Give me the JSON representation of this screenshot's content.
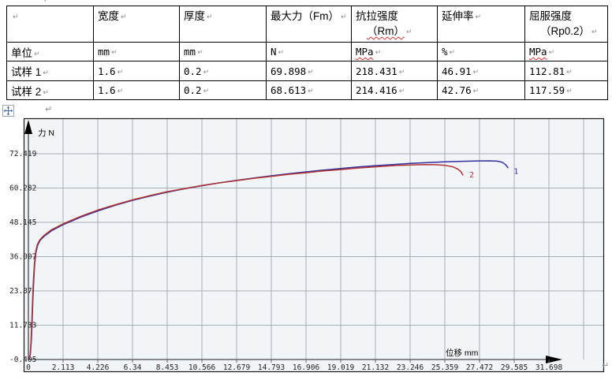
{
  "formatting_marks": {
    "pilcrow": "↵"
  },
  "table": {
    "header": {
      "cells": [
        {
          "text": ""
        },
        {
          "text": "宽度"
        },
        {
          "text": "厚度"
        },
        {
          "text": "最大力（Fm）"
        },
        {
          "text": "抗拉强度",
          "text2": "（Rm）",
          "wavy2": true
        },
        {
          "text": "延伸率"
        },
        {
          "text": "屈服强度",
          "text2": "（Rp0.2）",
          "wavy2": false
        }
      ]
    },
    "rows": [
      {
        "label": "单位",
        "values": [
          "mm",
          "mm",
          "N",
          "MPa",
          "%",
          "MPa"
        ],
        "wavy": [
          false,
          false,
          false,
          true,
          false,
          true
        ]
      },
      {
        "label": "试样 1",
        "values": [
          "1.6",
          "0.2",
          "69.898",
          "218.431",
          "46.91",
          "112.81"
        ],
        "wavy": [
          false,
          false,
          false,
          false,
          false,
          false
        ]
      },
      {
        "label": "试样 2",
        "values": [
          "1.6",
          "0.2",
          "68.613",
          "214.416",
          "42.76",
          "117.59"
        ],
        "wavy": [
          false,
          false,
          false,
          false,
          false,
          false
        ]
      }
    ]
  },
  "chart_data": {
    "type": "line",
    "title": "",
    "xlabel": "位移 mm",
    "ylabel": "力 N",
    "xlim": [
      0,
      33.811
    ],
    "ylim": [
      -0.405,
      72.419
    ],
    "grid": true,
    "x_tick_labels": [
      "0",
      "2.113",
      "4.226",
      "6.34",
      "8.453",
      "10.566",
      "12.679",
      "14.793",
      "16.906",
      "19.019",
      "21.132",
      "23.246",
      "25.359",
      "27.472",
      "29.585",
      "31.698"
    ],
    "y_tick_labels": [
      "72.419",
      "60.282",
      "48.145",
      "36.007",
      "23.87",
      "11.733",
      "-0.405"
    ],
    "colors": {
      "bg": "#f2f5f8",
      "grid": "#a8adb5",
      "axis": "#60666d",
      "frame": "#1a1a1a",
      "tick_text": "#1f1f1f"
    },
    "series": [
      {
        "name": "1",
        "color": "#2f2f9e",
        "end_label": "1",
        "end_label_at": [
          29.55,
          65.3
        ],
        "points": [
          [
            0.05,
            0
          ],
          [
            0.12,
            1.5
          ],
          [
            0.18,
            6
          ],
          [
            0.22,
            12
          ],
          [
            0.27,
            20
          ],
          [
            0.32,
            27
          ],
          [
            0.38,
            33
          ],
          [
            0.46,
            37.5
          ],
          [
            0.56,
            40
          ],
          [
            0.72,
            41.8
          ],
          [
            1.0,
            43.4
          ],
          [
            1.45,
            45.3
          ],
          [
            2.11,
            47.3
          ],
          [
            3.2,
            50.0
          ],
          [
            4.23,
            52.2
          ],
          [
            5.3,
            54.2
          ],
          [
            6.34,
            55.9
          ],
          [
            7.4,
            57.4
          ],
          [
            8.45,
            58.8
          ],
          [
            9.5,
            60.0
          ],
          [
            10.57,
            61.1
          ],
          [
            11.6,
            62.1
          ],
          [
            12.68,
            63.0
          ],
          [
            13.7,
            63.8
          ],
          [
            14.79,
            64.6
          ],
          [
            15.8,
            65.3
          ],
          [
            16.91,
            66.0
          ],
          [
            17.9,
            66.6
          ],
          [
            19.02,
            67.2
          ],
          [
            20.0,
            67.7
          ],
          [
            21.13,
            68.2
          ],
          [
            22.2,
            68.6
          ],
          [
            23.25,
            69.0
          ],
          [
            24.3,
            69.3
          ],
          [
            25.36,
            69.55
          ],
          [
            26.4,
            69.75
          ],
          [
            27.4,
            69.87
          ],
          [
            28.1,
            69.9
          ],
          [
            28.55,
            69.8
          ],
          [
            28.85,
            69.4
          ],
          [
            29.05,
            68.6
          ],
          [
            29.2,
            67.5
          ]
        ]
      },
      {
        "name": "2",
        "color": "#b23333",
        "end_label": "2",
        "end_label_at": [
          26.85,
          64.0
        ],
        "points": [
          [
            0.05,
            0
          ],
          [
            0.11,
            1.5
          ],
          [
            0.16,
            6
          ],
          [
            0.2,
            12
          ],
          [
            0.25,
            20
          ],
          [
            0.3,
            27
          ],
          [
            0.36,
            33
          ],
          [
            0.44,
            37.7
          ],
          [
            0.54,
            40.2
          ],
          [
            0.7,
            42.0
          ],
          [
            0.97,
            43.6
          ],
          [
            1.4,
            45.5
          ],
          [
            2.11,
            47.6
          ],
          [
            3.2,
            50.3
          ],
          [
            4.23,
            52.5
          ],
          [
            5.3,
            54.4
          ],
          [
            6.34,
            56.1
          ],
          [
            7.4,
            57.6
          ],
          [
            8.45,
            59.0
          ],
          [
            9.5,
            60.1
          ],
          [
            10.57,
            61.2
          ],
          [
            11.6,
            62.1
          ],
          [
            12.68,
            62.9
          ],
          [
            13.7,
            63.7
          ],
          [
            14.79,
            64.4
          ],
          [
            15.8,
            65.1
          ],
          [
            16.91,
            65.7
          ],
          [
            17.9,
            66.3
          ],
          [
            19.02,
            66.8
          ],
          [
            20.0,
            67.3
          ],
          [
            21.13,
            67.8
          ],
          [
            22.2,
            68.2
          ],
          [
            23.25,
            68.45
          ],
          [
            24.1,
            68.6
          ],
          [
            24.8,
            68.55
          ],
          [
            25.4,
            68.3
          ],
          [
            25.85,
            67.8
          ],
          [
            26.15,
            67.0
          ],
          [
            26.35,
            66.0
          ],
          [
            26.45,
            64.9
          ]
        ]
      }
    ]
  }
}
